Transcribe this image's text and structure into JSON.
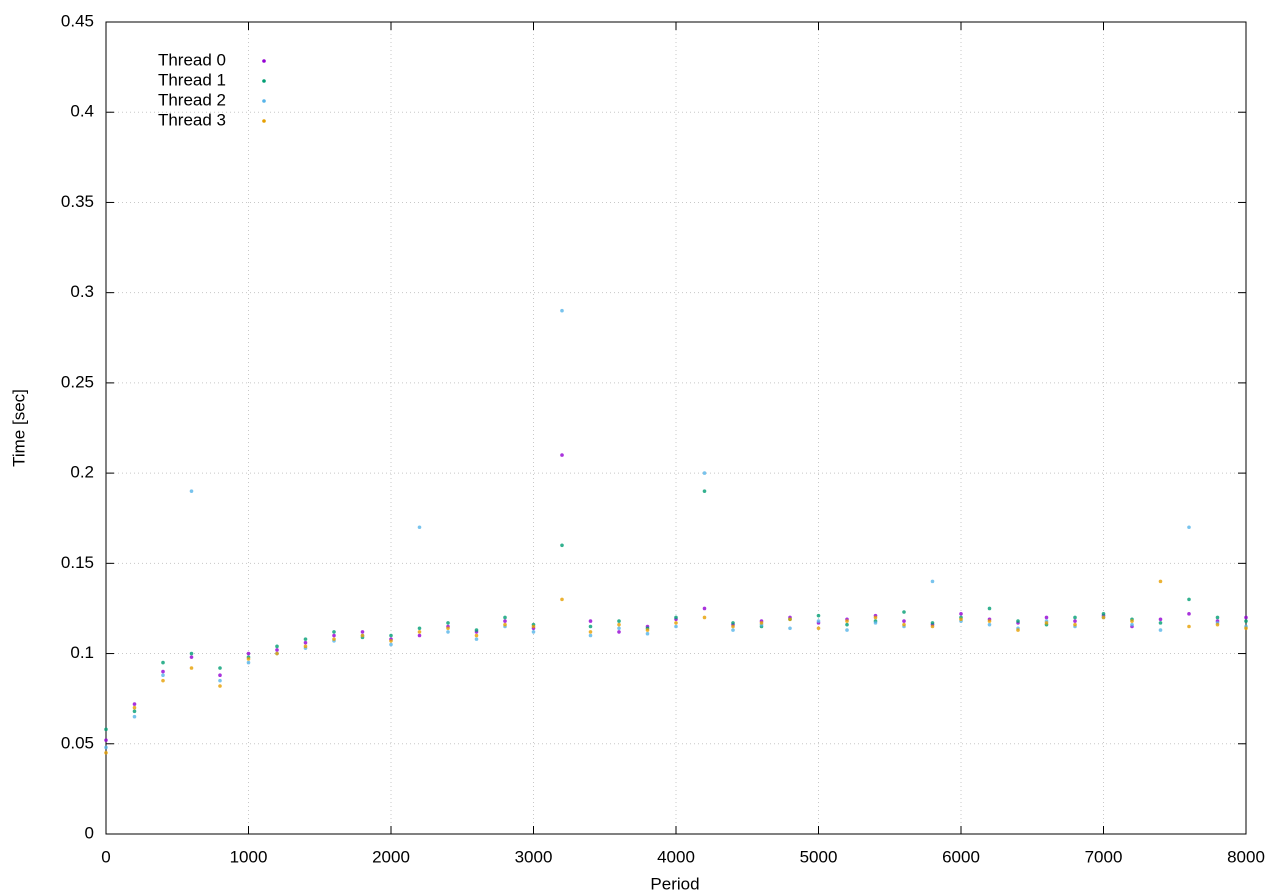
{
  "chart_data": {
    "type": "scatter",
    "xlabel": "Period",
    "ylabel": "Time [sec]",
    "xlim": [
      0,
      8000
    ],
    "ylim": [
      0,
      0.45
    ],
    "xticks": [
      0,
      1000,
      2000,
      3000,
      4000,
      5000,
      6000,
      7000,
      8000
    ],
    "yticks": [
      0,
      0.05,
      0.1,
      0.15,
      0.2,
      0.25,
      0.3,
      0.35,
      0.4,
      0.45
    ],
    "grid": true,
    "legend": "top-left",
    "x": [
      0,
      200,
      400,
      600,
      800,
      1000,
      1200,
      1400,
      1600,
      1800,
      2000,
      2200,
      2400,
      2600,
      2800,
      3000,
      3200,
      3400,
      3600,
      3800,
      4000,
      4200,
      4400,
      4600,
      4800,
      5000,
      5200,
      5400,
      5600,
      5800,
      6000,
      6200,
      6400,
      6600,
      6800,
      7000,
      7200,
      7400,
      7600,
      7800,
      8000
    ],
    "series": [
      {
        "name": "Thread 0",
        "color": "#9400d3",
        "values": [
          0.052,
          0.072,
          0.09,
          0.098,
          0.088,
          0.1,
          0.102,
          0.106,
          0.11,
          0.112,
          0.108,
          0.11,
          0.115,
          0.112,
          0.118,
          0.114,
          0.21,
          0.118,
          0.112,
          0.115,
          0.119,
          0.125,
          0.116,
          0.118,
          0.12,
          0.117,
          0.119,
          0.121,
          0.118,
          0.116,
          0.122,
          0.119,
          0.117,
          0.12,
          0.118,
          0.121,
          0.115,
          0.119,
          0.122,
          0.118,
          0.12
        ]
      },
      {
        "name": "Thread 1",
        "color": "#009e73",
        "values": [
          0.058,
          0.068,
          0.095,
          0.1,
          0.092,
          0.098,
          0.104,
          0.108,
          0.112,
          0.109,
          0.11,
          0.114,
          0.117,
          0.113,
          0.12,
          0.116,
          0.16,
          0.115,
          0.118,
          0.114,
          0.12,
          0.19,
          0.117,
          0.115,
          0.119,
          0.121,
          0.116,
          0.118,
          0.123,
          0.117,
          0.12,
          0.125,
          0.118,
          0.116,
          0.12,
          0.122,
          0.119,
          0.117,
          0.13,
          0.12,
          0.118
        ]
      },
      {
        "name": "Thread 2",
        "color": "#56b4e9",
        "values": [
          0.048,
          0.065,
          0.088,
          0.19,
          0.085,
          0.095,
          0.1,
          0.103,
          0.107,
          0.11,
          0.105,
          0.17,
          0.112,
          0.108,
          0.115,
          0.112,
          0.29,
          0.11,
          0.114,
          0.111,
          0.115,
          0.2,
          0.113,
          0.116,
          0.114,
          0.118,
          0.113,
          0.117,
          0.115,
          0.14,
          0.118,
          0.116,
          0.114,
          0.118,
          0.115,
          0.12,
          0.116,
          0.113,
          0.17,
          0.117,
          0.115
        ]
      },
      {
        "name": "Thread 3",
        "color": "#e69f00",
        "values": [
          0.045,
          0.07,
          0.085,
          0.092,
          0.082,
          0.097,
          0.1,
          0.104,
          0.108,
          0.11,
          0.107,
          0.112,
          0.114,
          0.11,
          0.116,
          0.115,
          0.13,
          0.112,
          0.116,
          0.113,
          0.117,
          0.12,
          0.115,
          0.117,
          0.119,
          0.114,
          0.118,
          0.12,
          0.116,
          0.115,
          0.119,
          0.118,
          0.113,
          0.117,
          0.116,
          0.12,
          0.118,
          0.14,
          0.115,
          0.116,
          0.114
        ]
      }
    ]
  }
}
